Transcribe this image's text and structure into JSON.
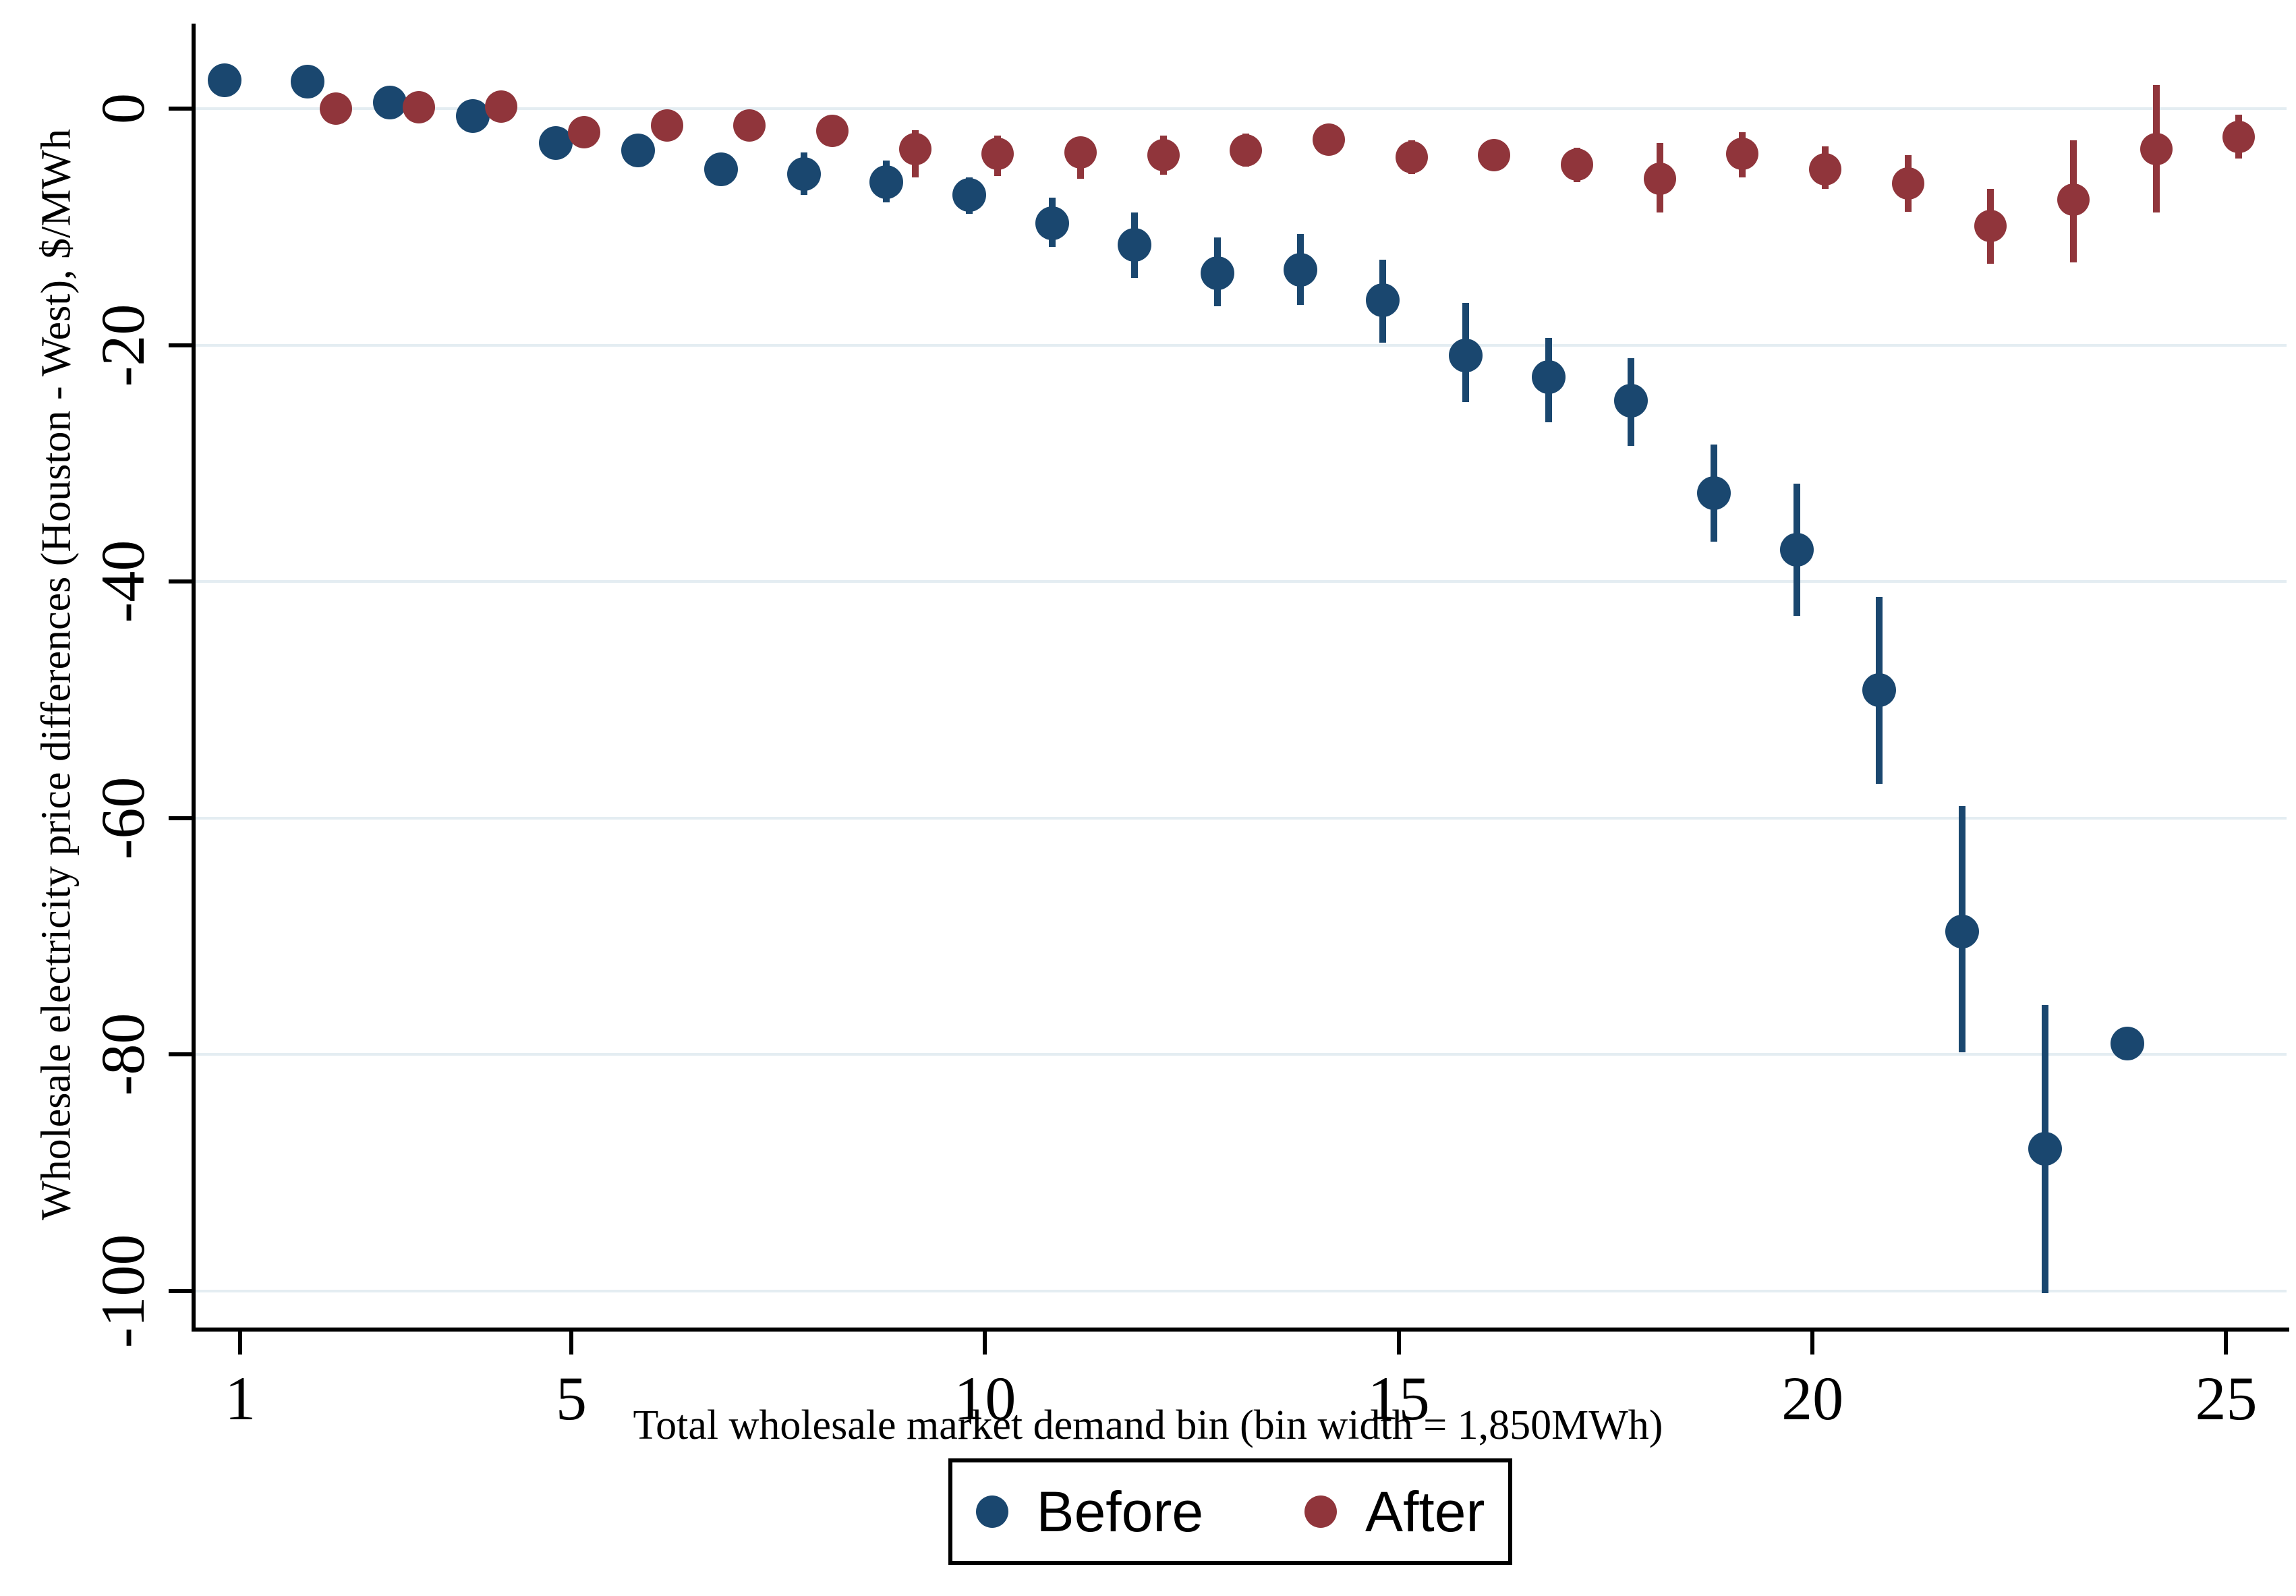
{
  "chart_data": {
    "type": "scatter",
    "title": "",
    "xlabel": "Total wholesale market demand bin (bin width = 1,850MWh)",
    "ylabel": "Wholesale electricity price differences (Houston - West), $/MWh",
    "xlim": [
      0.46,
      25.73
    ],
    "ylim": [
      -103.1,
      7.2
    ],
    "x_ticks": [
      1,
      5,
      10,
      15,
      20,
      25
    ],
    "y_ticks": [
      0,
      -20,
      -40,
      -60,
      -80,
      -100
    ],
    "grid": "horizontal",
    "gridline_color": "#e4edf2",
    "axis_color": "#000000",
    "legend_position": "bottom-center",
    "series": [
      {
        "name": "Before",
        "color": "#1a476f",
        "marker": "circle",
        "marker_size_px": 50,
        "x_offset_bins": -0.19,
        "points": [
          {
            "x": 1,
            "y": 2.4,
            "ci_low": null,
            "ci_high": null
          },
          {
            "x": 2,
            "y": 2.3,
            "ci_low": null,
            "ci_high": null
          },
          {
            "x": 3,
            "y": 0.5,
            "ci_low": null,
            "ci_high": null
          },
          {
            "x": 4,
            "y": -0.6,
            "ci_low": null,
            "ci_high": null
          },
          {
            "x": 5,
            "y": -2.9,
            "ci_low": null,
            "ci_high": null
          },
          {
            "x": 6,
            "y": -3.5,
            "ci_low": null,
            "ci_high": null
          },
          {
            "x": 7,
            "y": -5.1,
            "ci_low": -6.5,
            "ci_high": -3.8
          },
          {
            "x": 8,
            "y": -5.5,
            "ci_low": -7.3,
            "ci_high": -3.7
          },
          {
            "x": 9,
            "y": -6.2,
            "ci_low": -7.9,
            "ci_high": -4.4
          },
          {
            "x": 10,
            "y": -7.3,
            "ci_low": -8.9,
            "ci_high": -5.8
          },
          {
            "x": 11,
            "y": -9.7,
            "ci_low": -11.7,
            "ci_high": -7.5
          },
          {
            "x": 12,
            "y": -11.5,
            "ci_low": -14.3,
            "ci_high": -8.8
          },
          {
            "x": 13,
            "y": -13.9,
            "ci_low": -16.7,
            "ci_high": -10.9
          },
          {
            "x": 14,
            "y": -13.6,
            "ci_low": -16.6,
            "ci_high": -10.6
          },
          {
            "x": 15,
            "y": -16.2,
            "ci_low": -19.8,
            "ci_high": -12.8
          },
          {
            "x": 16,
            "y": -20.9,
            "ci_low": -24.8,
            "ci_high": -16.4
          },
          {
            "x": 17,
            "y": -22.7,
            "ci_low": -26.5,
            "ci_high": -19.4
          },
          {
            "x": 18,
            "y": -24.7,
            "ci_low": -28.5,
            "ci_high": -21.1
          },
          {
            "x": 19,
            "y": -32.5,
            "ci_low": -36.6,
            "ci_high": -28.4
          },
          {
            "x": 20,
            "y": -37.3,
            "ci_low": -42.9,
            "ci_high": -31.7
          },
          {
            "x": 21,
            "y": -49.2,
            "ci_low": -57.1,
            "ci_high": -41.3
          },
          {
            "x": 22,
            "y": -69.6,
            "ci_low": -79.8,
            "ci_high": -59.0
          },
          {
            "x": 23,
            "y": -88.0,
            "ci_low": -100.2,
            "ci_high": -75.8
          },
          {
            "x": 24,
            "y": -79.1,
            "ci_low": null,
            "ci_high": null
          }
        ]
      },
      {
        "name": "After",
        "color": "#90353b",
        "marker": "circle",
        "marker_size_px": 48,
        "x_offset_bins": 0.155,
        "points": [
          {
            "x": 2,
            "y": 0.0,
            "ci_low": null,
            "ci_high": null
          },
          {
            "x": 3,
            "y": 0.1,
            "ci_low": null,
            "ci_high": null
          },
          {
            "x": 4,
            "y": 0.2,
            "ci_low": null,
            "ci_high": null
          },
          {
            "x": 5,
            "y": -2.0,
            "ci_low": null,
            "ci_high": null
          },
          {
            "x": 6,
            "y": -1.4,
            "ci_low": null,
            "ci_high": null
          },
          {
            "x": 7,
            "y": -1.4,
            "ci_low": null,
            "ci_high": null
          },
          {
            "x": 8,
            "y": -1.9,
            "ci_low": null,
            "ci_high": null
          },
          {
            "x": 9,
            "y": -3.4,
            "ci_low": -5.8,
            "ci_high": -1.8
          },
          {
            "x": 10,
            "y": -3.8,
            "ci_low": -5.7,
            "ci_high": -2.3
          },
          {
            "x": 11,
            "y": -3.7,
            "ci_low": -5.9,
            "ci_high": -2.5
          },
          {
            "x": 12,
            "y": -3.9,
            "ci_low": -5.6,
            "ci_high": -2.3
          },
          {
            "x": 13,
            "y": -3.5,
            "ci_low": -4.9,
            "ci_high": -2.1
          },
          {
            "x": 14,
            "y": -2.6,
            "ci_low": -3.9,
            "ci_high": -1.4
          },
          {
            "x": 15,
            "y": -4.1,
            "ci_low": -5.5,
            "ci_high": -2.7
          },
          {
            "x": 16,
            "y": -3.9,
            "ci_low": -5.0,
            "ci_high": -2.7
          },
          {
            "x": 17,
            "y": -4.7,
            "ci_low": -6.2,
            "ci_high": -3.3
          },
          {
            "x": 18,
            "y": -5.9,
            "ci_low": -8.8,
            "ci_high": -2.9
          },
          {
            "x": 19,
            "y": -3.8,
            "ci_low": -5.8,
            "ci_high": -2.0
          },
          {
            "x": 20,
            "y": -5.1,
            "ci_low": -6.8,
            "ci_high": -3.2
          },
          {
            "x": 21,
            "y": -6.3,
            "ci_low": -8.7,
            "ci_high": -3.9
          },
          {
            "x": 22,
            "y": -9.9,
            "ci_low": -13.1,
            "ci_high": -6.8
          },
          {
            "x": 23,
            "y": -7.7,
            "ci_low": -13.0,
            "ci_high": -2.7
          },
          {
            "x": 24,
            "y": -3.4,
            "ci_low": -8.8,
            "ci_high": 2.0
          },
          {
            "x": 25,
            "y": -2.4,
            "ci_low": -4.2,
            "ci_high": -0.5
          }
        ]
      }
    ]
  },
  "legend": {
    "items": [
      {
        "label": "Before",
        "color": "#1a476f"
      },
      {
        "label": "After",
        "color": "#90353b"
      }
    ]
  }
}
